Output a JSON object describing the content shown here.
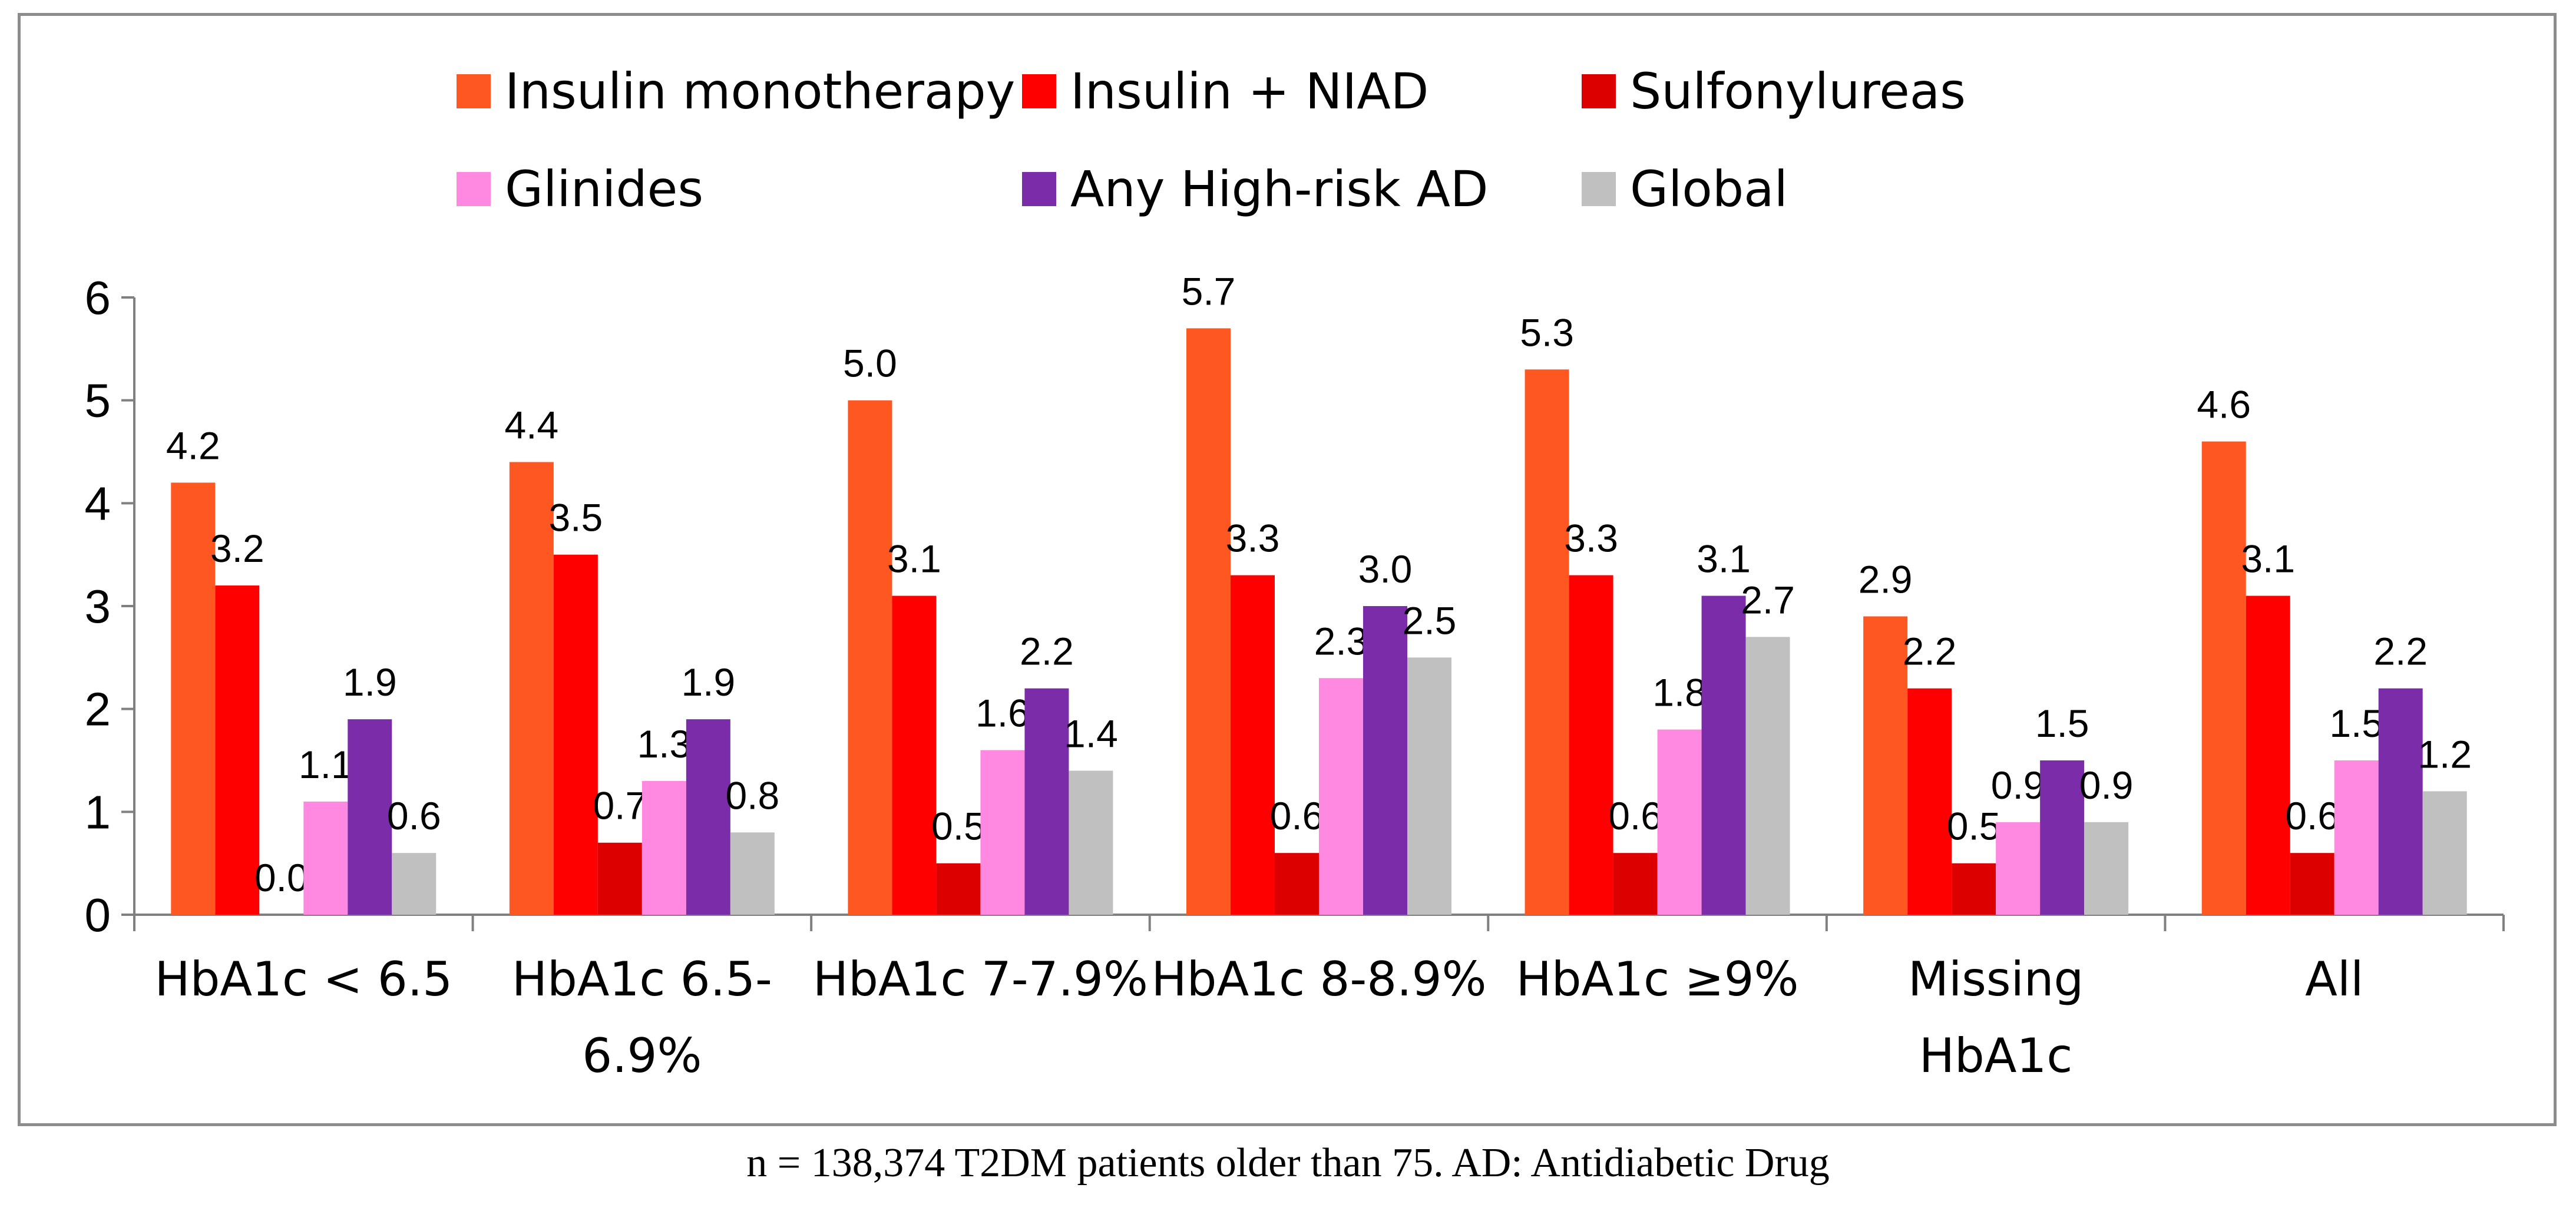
{
  "caption": "n = 138,374 T2DM patients older than 75. AD: Antidiabetic Drug",
  "chart_data": {
    "type": "bar",
    "title": "",
    "xlabel": "",
    "ylabel": "",
    "ylim": [
      0,
      6
    ],
    "yticks": [
      "0",
      "1",
      "2",
      "3",
      "4",
      "5",
      "6"
    ],
    "grid": false,
    "legend_position": "top",
    "categories": [
      [
        "HbA1c < 6.5"
      ],
      [
        "HbA1c 6.5-",
        "6.9%"
      ],
      [
        "HbA1c 7-7.9%"
      ],
      [
        "HbA1c 8-8.9%"
      ],
      [
        "HbA1c ≥9%"
      ],
      [
        "Missing",
        "HbA1c"
      ],
      [
        "All"
      ]
    ],
    "series": [
      {
        "name": "Insulin monotherapy",
        "color": "#ff5722",
        "values": [
          4.2,
          4.4,
          5.0,
          5.7,
          5.3,
          2.9,
          4.6
        ],
        "labels": [
          "4.2",
          "4.4",
          "5.0",
          "5.7",
          "5.3",
          "2.9",
          "4.6"
        ]
      },
      {
        "name": "Insulin + NIAD",
        "color": "#ff0000",
        "values": [
          3.2,
          3.5,
          3.1,
          3.3,
          3.3,
          2.2,
          3.1
        ],
        "labels": [
          "3.2",
          "3.5",
          "3.1",
          "3.3",
          "3.3",
          "2.2",
          "3.1"
        ]
      },
      {
        "name": "Sulfonylureas",
        "color": "#dd0000",
        "values": [
          0.0,
          0.7,
          0.5,
          0.6,
          0.6,
          0.5,
          0.6
        ],
        "labels": [
          "0.0",
          "0.7",
          "0.5",
          "0.6",
          "0.6",
          "0.5",
          "0.6"
        ]
      },
      {
        "name": "Glinides",
        "color": "#ff88e0",
        "values": [
          1.1,
          1.3,
          1.6,
          2.3,
          1.8,
          0.9,
          1.5
        ],
        "labels": [
          "1.1",
          "1.3",
          "1.6",
          "2.3",
          "1.8",
          "0.9",
          "1.5"
        ]
      },
      {
        "name": "Any High-risk AD",
        "color": "#7b2ca8",
        "values": [
          1.9,
          1.9,
          2.2,
          3.0,
          3.1,
          1.5,
          2.2
        ],
        "labels": [
          "1.9",
          "1.9",
          "2.2",
          "3.0",
          "3.1",
          "1.5",
          "2.2"
        ]
      },
      {
        "name": "Global",
        "color": "#c0c0c0",
        "values": [
          0.6,
          0.8,
          1.4,
          2.5,
          2.7,
          0.9,
          1.2
        ],
        "labels": [
          "0.6",
          "0.8",
          "1.4",
          "2.5",
          "2.7",
          "0.9",
          "1.2"
        ]
      }
    ]
  }
}
